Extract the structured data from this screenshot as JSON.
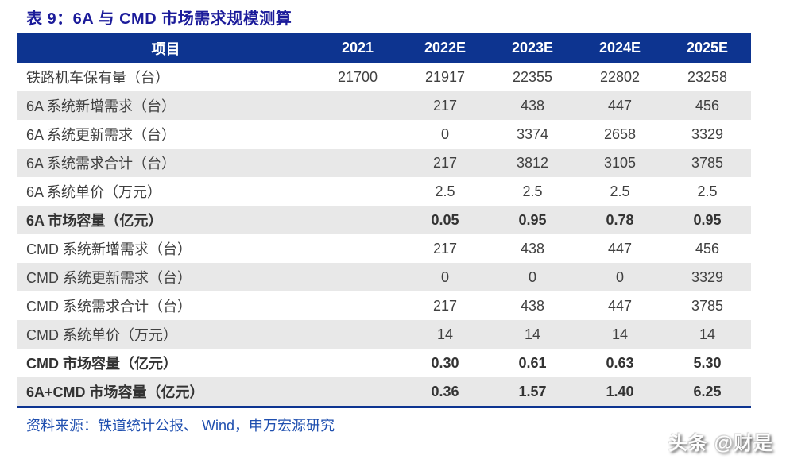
{
  "title": "表 9：6A 与 CMD 市场需求规模测算",
  "table": {
    "columns": [
      "项目",
      "2021",
      "2022E",
      "2023E",
      "2024E",
      "2025E"
    ],
    "rows": [
      {
        "label": "铁路机车保有量（台）",
        "values": [
          "21700",
          "21917",
          "22355",
          "22802",
          "23258"
        ],
        "bold": false
      },
      {
        "label": "6A 系统新增需求（台）",
        "values": [
          "",
          "217",
          "438",
          "447",
          "456"
        ],
        "bold": false
      },
      {
        "label": "6A 系统更新需求（台）",
        "values": [
          "",
          "0",
          "3374",
          "2658",
          "3329"
        ],
        "bold": false
      },
      {
        "label": "6A 系统需求合计（台）",
        "values": [
          "",
          "217",
          "3812",
          "3105",
          "3785"
        ],
        "bold": false
      },
      {
        "label": "6A 系统单价（万元）",
        "values": [
          "",
          "2.5",
          "2.5",
          "2.5",
          "2.5"
        ],
        "bold": false
      },
      {
        "label": "6A 市场容量（亿元）",
        "values": [
          "",
          "0.05",
          "0.95",
          "0.78",
          "0.95"
        ],
        "bold": true
      },
      {
        "label": "CMD 系统新增需求（台）",
        "values": [
          "",
          "217",
          "438",
          "447",
          "456"
        ],
        "bold": false
      },
      {
        "label": "CMD 系统更新需求（台）",
        "values": [
          "",
          "0",
          "0",
          "0",
          "3329"
        ],
        "bold": false
      },
      {
        "label": "CMD 系统需求合计（台）",
        "values": [
          "",
          "217",
          "438",
          "447",
          "3785"
        ],
        "bold": false
      },
      {
        "label": "CMD 系统单价（万元）",
        "values": [
          "",
          "14",
          "14",
          "14",
          "14"
        ],
        "bold": false
      },
      {
        "label": "CMD 市场容量（亿元）",
        "values": [
          "",
          "0.30",
          "0.61",
          "0.63",
          "5.30"
        ],
        "bold": true
      },
      {
        "label": "6A+CMD 市场容量（亿元）",
        "values": [
          "",
          "0.36",
          "1.57",
          "1.40",
          "6.25"
        ],
        "bold": true
      }
    ]
  },
  "source": "资料来源：铁道统计公报、 Wind，申万宏源研究",
  "watermark": "头条 @财是",
  "colors": {
    "header_bg": "#0D3490",
    "title": "#1B1B9A",
    "source": "#1F4FAF",
    "stripe": "#E8E8E8",
    "body_text": "#404040"
  },
  "chart_data": {
    "type": "table",
    "title": "表 9：6A 与 CMD 市场需求规模测算",
    "categories": [
      "2021",
      "2022E",
      "2023E",
      "2024E",
      "2025E"
    ],
    "series": [
      {
        "name": "铁路机车保有量（台）",
        "values": [
          21700,
          21917,
          22355,
          22802,
          23258
        ]
      },
      {
        "name": "6A 系统新增需求（台）",
        "values": [
          null,
          217,
          438,
          447,
          456
        ]
      },
      {
        "name": "6A 系统更新需求（台）",
        "values": [
          null,
          0,
          3374,
          2658,
          3329
        ]
      },
      {
        "name": "6A 系统需求合计（台）",
        "values": [
          null,
          217,
          3812,
          3105,
          3785
        ]
      },
      {
        "name": "6A 系统单价（万元）",
        "values": [
          null,
          2.5,
          2.5,
          2.5,
          2.5
        ]
      },
      {
        "name": "6A 市场容量（亿元）",
        "values": [
          null,
          0.05,
          0.95,
          0.78,
          0.95
        ]
      },
      {
        "name": "CMD 系统新增需求（台）",
        "values": [
          null,
          217,
          438,
          447,
          456
        ]
      },
      {
        "name": "CMD 系统更新需求（台）",
        "values": [
          null,
          0,
          0,
          0,
          3329
        ]
      },
      {
        "name": "CMD 系统需求合计（台）",
        "values": [
          null,
          217,
          438,
          447,
          3785
        ]
      },
      {
        "name": "CMD 系统单价（万元）",
        "values": [
          null,
          14,
          14,
          14,
          14
        ]
      },
      {
        "name": "CMD 市场容量（亿元）",
        "values": [
          null,
          0.3,
          0.61,
          0.63,
          5.3
        ]
      },
      {
        "name": "6A+CMD 市场容量（亿元）",
        "values": [
          null,
          0.36,
          1.57,
          1.4,
          6.25
        ]
      }
    ]
  }
}
